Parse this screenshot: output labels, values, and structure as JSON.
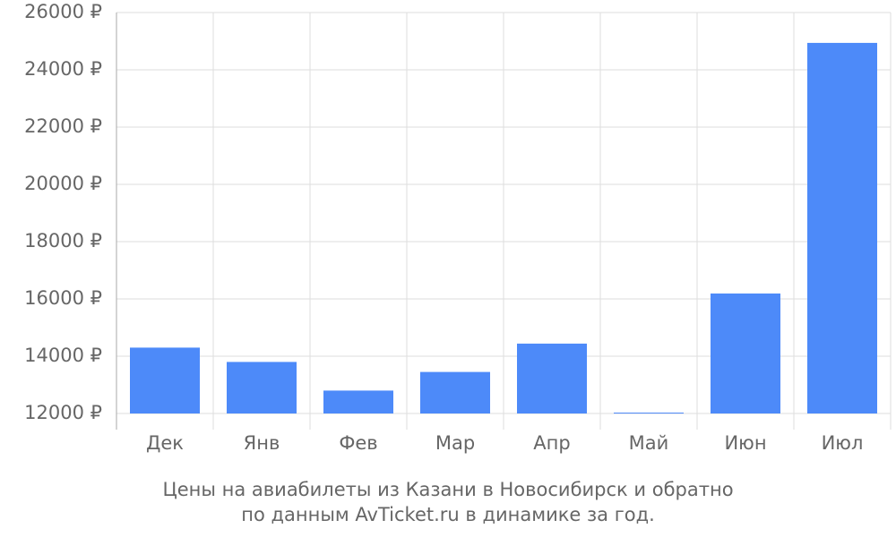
{
  "chart_data": {
    "type": "bar",
    "title": [
      "Цены на авиабилеты из Казани в Новосибирск и обратно",
      "по данным AvTicket.ru в динамике за год."
    ],
    "categories": [
      "Дек",
      "Янв",
      "Фев",
      "Мар",
      "Апр",
      "Май",
      "Июн",
      "Июл"
    ],
    "values": [
      14300,
      13800,
      12800,
      13450,
      14440,
      12030,
      16190,
      24940
    ],
    "color": "#4d8af9",
    "ylim": [
      12000,
      26000
    ],
    "yticks": [
      {
        "value": 12000,
        "label": "12000 ₽"
      },
      {
        "value": 14000,
        "label": "14000 ₽"
      },
      {
        "value": 16000,
        "label": "16000 ₽"
      },
      {
        "value": 18000,
        "label": "18000 ₽"
      },
      {
        "value": 20000,
        "label": "20000 ₽"
      },
      {
        "value": 22000,
        "label": "22000 ₽"
      },
      {
        "value": 24000,
        "label": "24000 ₽"
      },
      {
        "value": 26000,
        "label": "26000 ₽"
      }
    ],
    "grid": true
  }
}
